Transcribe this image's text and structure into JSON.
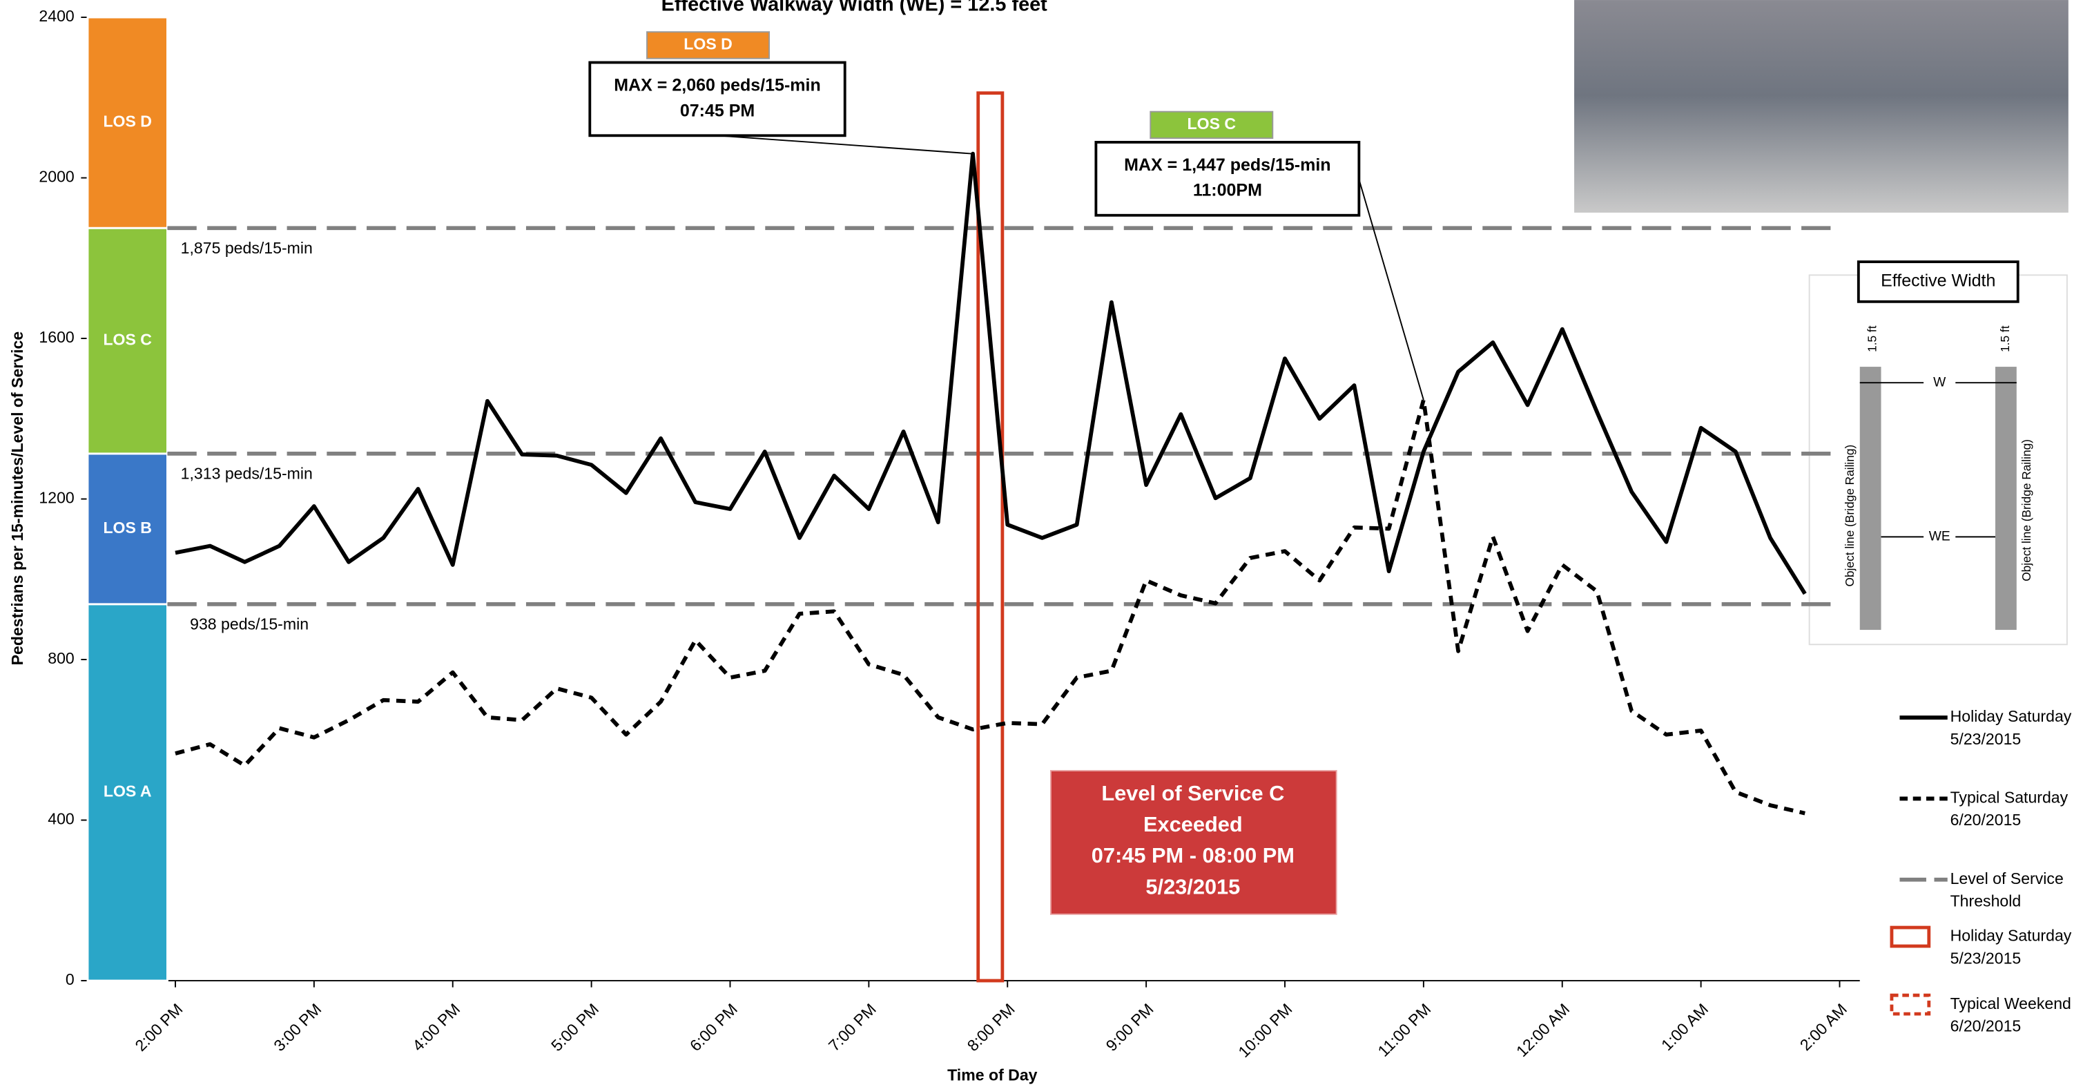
{
  "chart_data": {
    "type": "line",
    "title": "Effective Walkway Width (WE) = 12.5 feet",
    "x_label": "Time of Day",
    "y_label": "Pedestrians per 15-minutes/Level of Service",
    "categories": [
      "2:00 PM",
      null,
      null,
      null,
      "3:00 PM",
      null,
      null,
      null,
      "4:00 PM",
      null,
      null,
      null,
      "5:00 PM",
      null,
      null,
      null,
      "6:00 PM",
      null,
      null,
      null,
      "7:00 PM",
      null,
      null,
      null,
      "8:00 PM",
      null,
      null,
      null,
      "9:00 PM",
      null,
      null,
      null,
      "10:00 PM",
      null,
      null,
      null,
      "11:00 PM",
      null,
      null,
      null,
      "12:00 AM",
      null,
      null,
      null,
      "1:00 AM",
      null,
      null,
      null,
      "2:00 AM"
    ],
    "series": [
      {
        "name": "Holiday Saturday 5/23/2015",
        "color": "#000000",
        "dash": false,
        "values": [
          1066,
          1083,
          1043,
          1083,
          1182,
          1043,
          1103,
          1225,
          1036,
          1444,
          1311,
          1308,
          1285,
          1215,
          1351,
          1192,
          1175,
          1318,
          1103,
          1258,
          1175,
          1368,
          1142,
          2060,
          1136,
          1103,
          1136,
          1690,
          1235,
          1411,
          1202,
          1252,
          1550,
          1400,
          1483,
          1020,
          1318,
          1517,
          1590,
          1434,
          1623,
          1417,
          1218,
          1093,
          1377,
          1318,
          1103,
          964,
          null
        ]
      },
      {
        "name": "Typical Saturday 6/20/2015",
        "color": "#000000",
        "dash": true,
        "values": [
          566,
          589,
          536,
          629,
          606,
          649,
          699,
          695,
          768,
          656,
          649,
          728,
          705,
          613,
          695,
          848,
          755,
          772,
          914,
          920,
          788,
          762,
          656,
          626,
          642,
          639,
          755,
          772,
          997,
          960,
          940,
          1053,
          1070,
          997,
          1129,
          1126,
          1447,
          821,
          1106,
          871,
          1036,
          970,
          672,
          613,
          623,
          470,
          437,
          417,
          null
        ]
      }
    ],
    "ylim": [
      0,
      2400
    ],
    "yticks": [
      0,
      400,
      800,
      1200,
      1600,
      2000,
      2400
    ],
    "thresholds": [
      {
        "value": 938,
        "label": "938 peds/15-min"
      },
      {
        "value": 1313,
        "label": "1,313 peds/15-min"
      },
      {
        "value": 1875,
        "label": "1,875 peds/15-min"
      }
    ],
    "threshold_color": "#808080",
    "los_bands": [
      {
        "label": "LOS A",
        "color": "#2aa6c8"
      },
      {
        "label": "LOS B",
        "color": "#3a78c8"
      },
      {
        "label": "LOS C",
        "color": "#8cc43c"
      },
      {
        "label": "LOS D",
        "color": "#f08a24"
      }
    ],
    "callouts": [
      {
        "tag": "LOS D",
        "lines": [
          "MAX = 2,060 peds/15-min",
          "07:45 PM"
        ]
      },
      {
        "tag": "LOS C",
        "lines": [
          "MAX = 1,447 peds/15-min",
          "11:00PM"
        ]
      }
    ],
    "exceeded_note": [
      "Level of Service C",
      "Exceeded",
      "07:45 PM - 08:00 PM",
      "5/23/2015"
    ],
    "legend": [
      [
        "Holiday Saturday",
        "5/23/2015"
      ],
      [
        "Typical Saturday",
        "6/20/2015"
      ],
      [
        "Level of Service",
        "Threshold"
      ],
      [
        "Holiday Saturday",
        "5/23/2015"
      ],
      [
        "Typical Weekend",
        "6/20/2015"
      ]
    ],
    "diagram": {
      "title": "Effective Width",
      "offset_left": "1.5 ft",
      "offset_right": "1.5 ft",
      "w": "W",
      "we": "WE",
      "rail_left": "Object line (Bridge Railing)",
      "rail_right": "Object line (Bridge Railing)"
    }
  }
}
